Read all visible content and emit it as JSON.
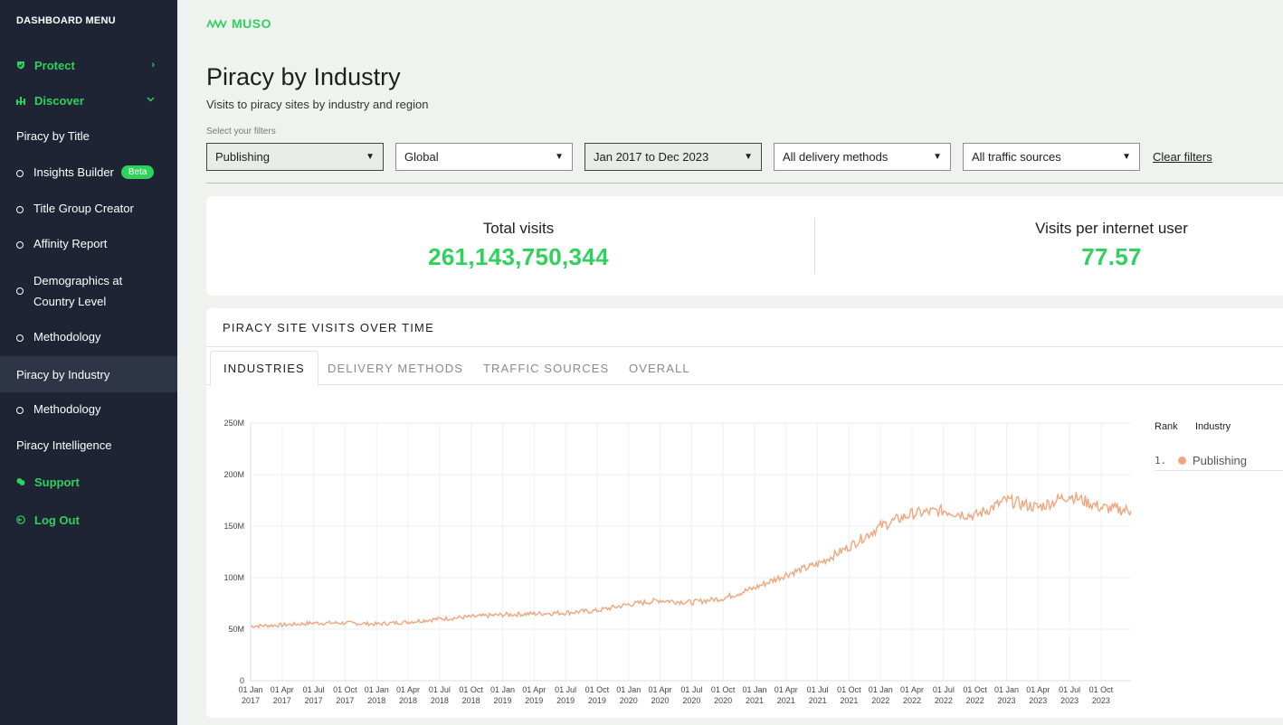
{
  "sidebar": {
    "heading": "DASHBOARD MENU",
    "protect": "Protect",
    "discover": "Discover",
    "piracy_by_title": "Piracy by Title",
    "insights_builder": "Insights Builder",
    "beta": "Beta",
    "title_group_creator": "Title Group Creator",
    "affinity_report": "Affinity Report",
    "demographics_line1": "Demographics at",
    "demographics_line2": "Country Level",
    "methodology_1": "Methodology",
    "piracy_by_industry": "Piracy by Industry",
    "methodology_2": "Methodology",
    "piracy_intelligence": "Piracy Intelligence",
    "support": "Support",
    "log_out": "Log Out"
  },
  "brand": {
    "name": "MUSO",
    "color": "#2fd25d"
  },
  "page": {
    "title": "Piracy by Industry",
    "subtitle": "Visits to piracy sites by industry and region",
    "filters_label": "Select your filters"
  },
  "filters": {
    "industry": "Publishing",
    "region": "Global",
    "date_range": "Jan 2017 to Dec 2023",
    "delivery": "All delivery methods",
    "traffic": "All traffic sources",
    "clear": "Clear filters"
  },
  "stats": {
    "total_label": "Total visits",
    "total_value": "261,143,750,344",
    "per_user_label": "Visits per internet user",
    "per_user_value": "77.57"
  },
  "chart_section": {
    "title": "PIRACY SITE VISITS OVER TIME",
    "tabs": [
      "INDUSTRIES",
      "DELIVERY METHODS",
      "TRAFFIC SOURCES",
      "OVERALL"
    ],
    "legend": {
      "rank_header": "Rank",
      "industry_header": "Industry",
      "rank": "1.",
      "name": "Publishing"
    }
  },
  "chart_data": {
    "type": "line",
    "title": "",
    "xlabel": "",
    "ylabel": "",
    "ylim": [
      0,
      250000000
    ],
    "yticks": [
      "0",
      "50M",
      "100M",
      "150M",
      "200M",
      "250M"
    ],
    "xticks": [
      [
        "01 Jan",
        "2017"
      ],
      [
        "01 Apr",
        "2017"
      ],
      [
        "01 Jul",
        "2017"
      ],
      [
        "01 Oct",
        "2017"
      ],
      [
        "01 Jan",
        "2018"
      ],
      [
        "01 Apr",
        "2018"
      ],
      [
        "01 Jul",
        "2018"
      ],
      [
        "01 Oct",
        "2018"
      ],
      [
        "01 Jan",
        "2019"
      ],
      [
        "01 Apr",
        "2019"
      ],
      [
        "01 Jul",
        "2019"
      ],
      [
        "01 Oct",
        "2019"
      ],
      [
        "01 Jan",
        "2020"
      ],
      [
        "01 Apr",
        "2020"
      ],
      [
        "01 Jul",
        "2020"
      ],
      [
        "01 Oct",
        "2020"
      ],
      [
        "01 Jan",
        "2021"
      ],
      [
        "01 Apr",
        "2021"
      ],
      [
        "01 Jul",
        "2021"
      ],
      [
        "01 Oct",
        "2021"
      ],
      [
        "01 Jan",
        "2022"
      ],
      [
        "01 Apr",
        "2022"
      ],
      [
        "01 Jul",
        "2022"
      ],
      [
        "01 Oct",
        "2022"
      ],
      [
        "01 Jan",
        "2023"
      ],
      [
        "01 Apr",
        "2023"
      ],
      [
        "01 Jul",
        "2023"
      ],
      [
        "01 Oct",
        "2023"
      ]
    ],
    "grid": true,
    "series": [
      {
        "name": "Publishing",
        "color": "#f0a77f",
        "x": [
          "2017-01",
          "2017-04",
          "2017-07",
          "2017-10",
          "2018-01",
          "2018-04",
          "2018-07",
          "2018-10",
          "2019-01",
          "2019-04",
          "2019-07",
          "2019-10",
          "2020-01",
          "2020-04",
          "2020-07",
          "2020-10",
          "2021-01",
          "2021-04",
          "2021-07",
          "2021-10",
          "2022-01",
          "2022-04",
          "2022-07",
          "2022-10",
          "2023-01",
          "2023-04",
          "2023-07",
          "2023-10",
          "2023-12"
        ],
        "values": [
          53000000,
          54000000,
          56000000,
          56000000,
          55000000,
          57000000,
          60000000,
          62000000,
          64000000,
          65000000,
          66000000,
          68000000,
          74000000,
          78000000,
          76000000,
          80000000,
          90000000,
          103000000,
          113000000,
          130000000,
          150000000,
          162000000,
          165000000,
          160000000,
          175000000,
          168000000,
          180000000,
          168000000,
          165000000
        ]
      }
    ]
  }
}
